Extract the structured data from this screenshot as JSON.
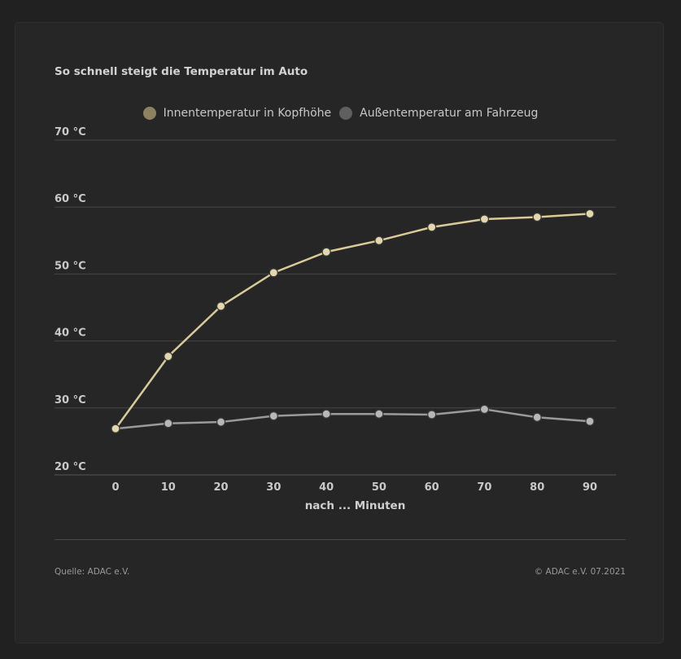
{
  "header": {
    "title": "So schnell steigt die Temperatur im Auto"
  },
  "legend": {
    "items": [
      {
        "label": "Innentemperatur in Kopfhöhe",
        "color": "#8c8261"
      },
      {
        "label": "Außentemperatur am Fahrzeug",
        "color": "#5f5f5f"
      }
    ]
  },
  "footer": {
    "source": "Quelle: ADAC e.V.",
    "copyright": "© ADAC e.V. 07.2021"
  },
  "chart_data": {
    "type": "line",
    "title": "So schnell steigt die Temperatur im Auto",
    "xlabel": "nach ... Minuten",
    "ylabel": "",
    "x": [
      0,
      10,
      20,
      30,
      40,
      50,
      60,
      70,
      80,
      90
    ],
    "ylim": [
      20,
      70
    ],
    "yticks": [
      20,
      30,
      40,
      50,
      60,
      70
    ],
    "ytick_labels": [
      "20 °C",
      "30 °C",
      "40 °C",
      "50 °C",
      "60 °C",
      "70 °C"
    ],
    "grid": true,
    "legend_position": "top-center",
    "series": [
      {
        "name": "Innentemperatur in Kopfhöhe",
        "color": "#d9cb97",
        "values": [
          26.9,
          37.7,
          45.2,
          50.2,
          53.3,
          55.0,
          57.0,
          58.2,
          58.5,
          59.0
        ]
      },
      {
        "name": "Außentemperatur am Fahrzeug",
        "color": "#9a9a9a",
        "values": [
          26.9,
          27.7,
          27.9,
          28.8,
          29.1,
          29.1,
          29.0,
          29.8,
          28.6,
          28.0
        ]
      }
    ]
  }
}
